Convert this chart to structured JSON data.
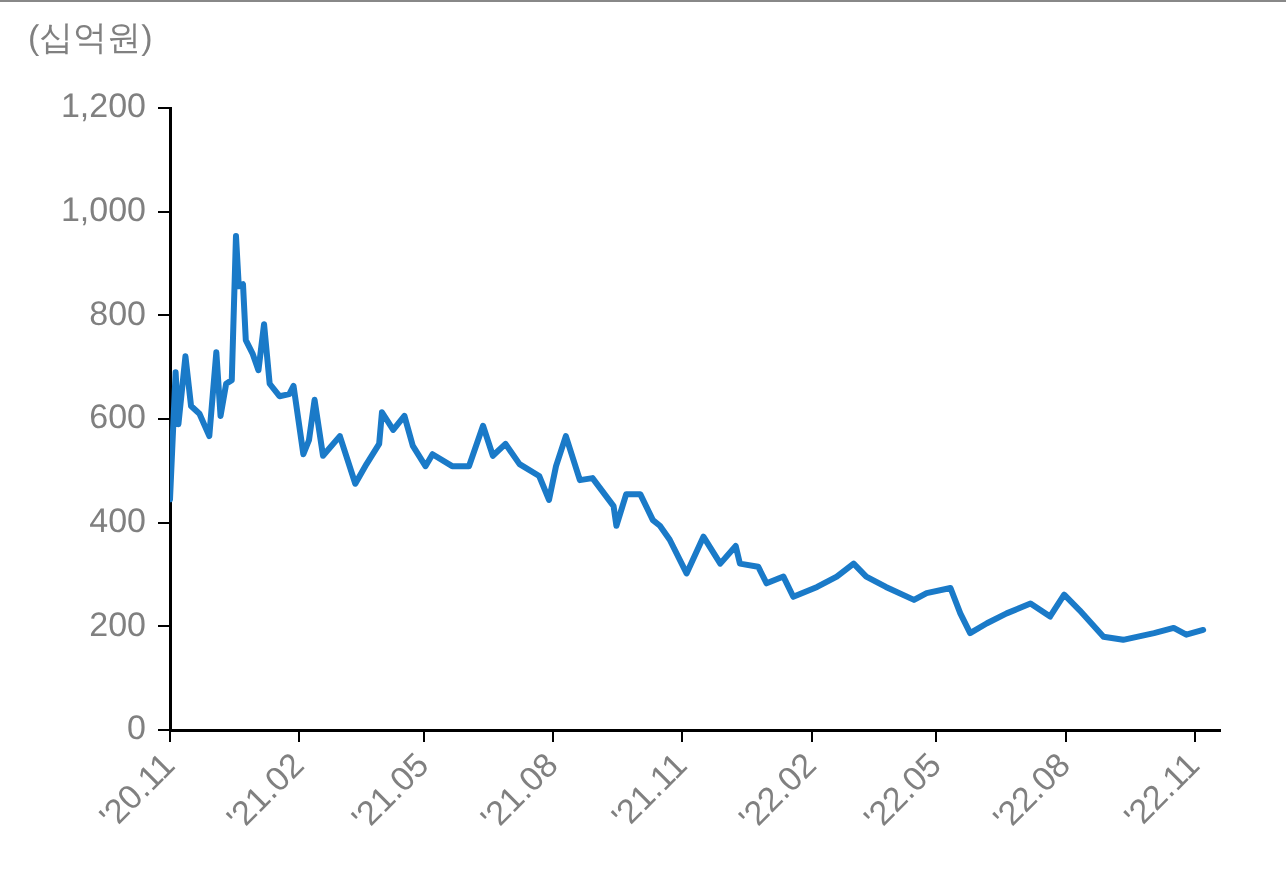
{
  "chart_data": {
    "type": "line",
    "ylabel": "(십억원)",
    "xlim": [
      "2020-11-01",
      "2022-11-19"
    ],
    "xticks": [
      {
        "value": "2020-11-01",
        "label": "'20.11"
      },
      {
        "value": "2021-02-01",
        "label": "'21.02"
      },
      {
        "value": "2021-05-01",
        "label": "'21.05"
      },
      {
        "value": "2021-08-01",
        "label": "'21.08"
      },
      {
        "value": "2021-11-01",
        "label": "'21.11"
      },
      {
        "value": "2022-02-01",
        "label": "'22.02"
      },
      {
        "value": "2022-05-01",
        "label": "'22.05"
      },
      {
        "value": "2022-08-01",
        "label": "'22.08"
      },
      {
        "value": "2022-11-01",
        "label": "'22.11"
      }
    ],
    "ylim": [
      0,
      1200
    ],
    "yticks": [
      0,
      200,
      400,
      600,
      800,
      {
        "value": 1000,
        "label": "1,000"
      },
      {
        "value": 1200,
        "label": "1,200"
      }
    ],
    "grid": false,
    "legend": false,
    "marker": "none",
    "line_style": "solid",
    "x": [
      "2020-11-01",
      "2020-11-05",
      "2020-11-07",
      "2020-11-12",
      "2020-11-16",
      "2020-11-22",
      "2020-11-29",
      "2020-12-04",
      "2020-12-07",
      "2020-12-11",
      "2020-12-15",
      "2020-12-18",
      "2020-12-20",
      "2020-12-23",
      "2020-12-25",
      "2020-12-30",
      "2021-01-03",
      "2021-01-07",
      "2021-01-11",
      "2021-01-18",
      "2021-01-25",
      "2021-01-28",
      "2021-02-04",
      "2021-02-08",
      "2021-02-12",
      "2021-02-18",
      "2021-03-02",
      "2021-03-13",
      "2021-03-21",
      "2021-03-30",
      "2021-04-01",
      "2021-04-09",
      "2021-04-17",
      "2021-04-23",
      "2021-05-02",
      "2021-05-07",
      "2021-05-21",
      "2021-06-02",
      "2021-06-12",
      "2021-06-19",
      "2021-06-28",
      "2021-07-08",
      "2021-07-22",
      "2021-07-29",
      "2021-08-03",
      "2021-08-10",
      "2021-08-20",
      "2021-08-29",
      "2021-09-13",
      "2021-09-15",
      "2021-09-22",
      "2021-10-02",
      "2021-10-11",
      "2021-10-16",
      "2021-10-23",
      "2021-11-04",
      "2021-11-16",
      "2021-11-28",
      "2021-12-09",
      "2021-12-12",
      "2021-12-25",
      "2021-12-31",
      "2022-01-12",
      "2022-01-19",
      "2022-02-05",
      "2022-02-19",
      "2022-03-03",
      "2022-03-12",
      "2022-03-26",
      "2022-04-15",
      "2022-04-24",
      "2022-05-11",
      "2022-05-18",
      "2022-05-25",
      "2022-06-06",
      "2022-06-20",
      "2022-07-07",
      "2022-07-21",
      "2022-07-31",
      "2022-08-11",
      "2022-08-28",
      "2022-09-11",
      "2022-10-03",
      "2022-10-17",
      "2022-10-26",
      "2022-11-07"
    ],
    "series": [
      {
        "color": "#1a7ac8",
        "values": [
          445,
          690,
          590,
          721,
          625,
          610,
          567,
          729,
          606,
          668,
          675,
          953,
          856,
          860,
          752,
          725,
          694,
          783,
          668,
          644,
          648,
          664,
          532,
          559,
          637,
          529,
          567,
          475,
          513,
          552,
          613,
          579,
          606,
          548,
          509,
          532,
          509,
          509,
          587,
          529,
          552,
          513,
          490,
          444,
          509,
          567,
          482,
          486,
          432,
          394,
          455,
          455,
          405,
          394,
          367,
          302,
          373,
          321,
          355,
          321,
          315,
          283,
          296,
          257,
          276,
          296,
          321,
          296,
          276,
          251,
          264,
          274,
          225,
          187,
          206,
          225,
          244,
          219,
          261,
          231,
          180,
          174,
          187,
          197,
          184,
          193
        ]
      }
    ]
  }
}
